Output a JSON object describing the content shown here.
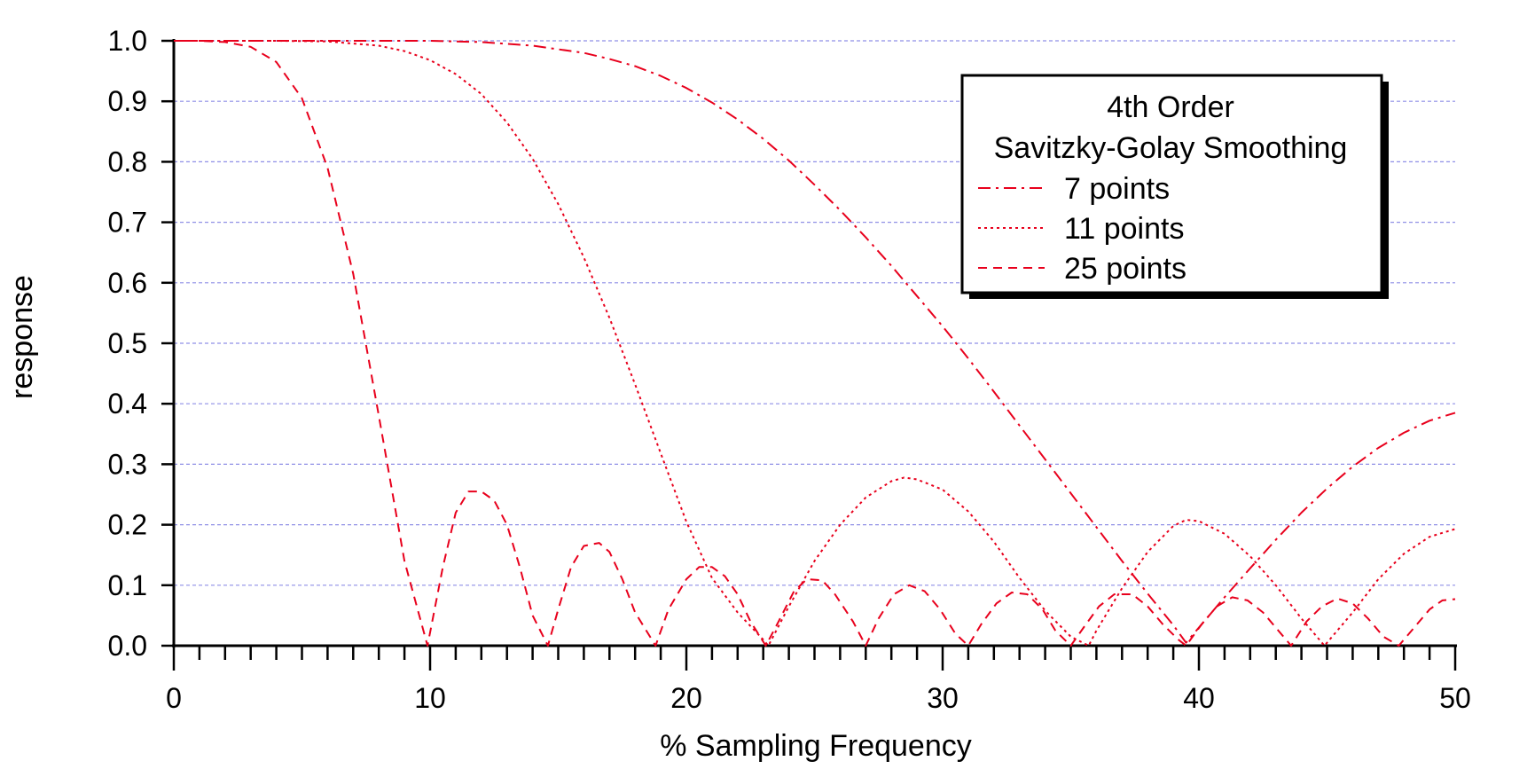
{
  "chart_data": {
    "type": "line",
    "title": "",
    "xlabel": "% Sampling Frequency",
    "ylabel": "response",
    "xlim": [
      0,
      50
    ],
    "ylim": [
      0,
      1.0
    ],
    "x_ticks": [
      "0",
      "10",
      "20",
      "30",
      "40",
      "50"
    ],
    "y_ticks": [
      "0.0",
      "0.1",
      "0.2",
      "0.3",
      "0.4",
      "0.5",
      "0.6",
      "0.7",
      "0.8",
      "0.9",
      "1.0"
    ],
    "grid": "horizontal dashed",
    "legend": {
      "placement": "top-right",
      "title_line1": "4th Order",
      "title_line2": "Savitzky-Golay Smoothing"
    },
    "series": [
      {
        "name": "7 points",
        "style": "dash-dot",
        "color": "#e8001c",
        "x": [
          0,
          2,
          4,
          6,
          8,
          10,
          12,
          14,
          16,
          17,
          18,
          19,
          20,
          21,
          22,
          23,
          24,
          25,
          26,
          27,
          28,
          29,
          30,
          31,
          32,
          33,
          34,
          35,
          36,
          37,
          38,
          39,
          39.5,
          40,
          41,
          42,
          43,
          44,
          45,
          46,
          47,
          48,
          49,
          50
        ],
        "y": [
          1.0,
          1.0,
          1.0,
          1.0,
          1.0,
          1.0,
          0.998,
          0.992,
          0.98,
          0.97,
          0.958,
          0.942,
          0.922,
          0.898,
          0.87,
          0.838,
          0.802,
          0.762,
          0.72,
          0.675,
          0.628,
          0.578,
          0.528,
          0.475,
          0.42,
          0.364,
          0.308,
          0.252,
          0.196,
          0.14,
          0.086,
          0.034,
          0.005,
          0.03,
          0.08,
          0.128,
          0.175,
          0.22,
          0.26,
          0.296,
          0.327,
          0.352,
          0.372,
          0.385
        ]
      },
      {
        "name": "11 points",
        "style": "dotted",
        "color": "#e8001c",
        "x": [
          0,
          2,
          4,
          6,
          8,
          9,
          10,
          11,
          12,
          13,
          14,
          15,
          16,
          17,
          18,
          19,
          20,
          21,
          22,
          23,
          23.2,
          24,
          25,
          26,
          27,
          28,
          28.5,
          29,
          30,
          31,
          32,
          33,
          34,
          35,
          35.7,
          36,
          37,
          38,
          39,
          39.5,
          40,
          41,
          42,
          43,
          44,
          44.9,
          46,
          47,
          48,
          49,
          50
        ],
        "y": [
          1.0,
          1.0,
          1.0,
          0.999,
          0.992,
          0.983,
          0.968,
          0.945,
          0.912,
          0.865,
          0.805,
          0.73,
          0.642,
          0.542,
          0.432,
          0.318,
          0.205,
          0.112,
          0.055,
          0.01,
          0.0,
          0.065,
          0.14,
          0.2,
          0.245,
          0.272,
          0.278,
          0.275,
          0.258,
          0.222,
          0.172,
          0.112,
          0.058,
          0.015,
          0.0,
          0.025,
          0.095,
          0.155,
          0.198,
          0.208,
          0.206,
          0.185,
          0.148,
          0.1,
          0.045,
          0.0,
          0.055,
          0.11,
          0.152,
          0.18,
          0.193
        ]
      },
      {
        "name": "25 points",
        "style": "dashed",
        "color": "#e8001c",
        "x": [
          0,
          1,
          2,
          3,
          4,
          5,
          6,
          7,
          8,
          9,
          9.9,
          10.5,
          11,
          11.5,
          12,
          12.5,
          13,
          13.5,
          14,
          14.6,
          15,
          15.5,
          16,
          16.6,
          17,
          17.5,
          18,
          18.8,
          19.3,
          20,
          20.5,
          21,
          21.5,
          22,
          22.5,
          23.1,
          23.6,
          24.2,
          24.7,
          25.3,
          25.8,
          26.5,
          27,
          27.5,
          28.1,
          28.7,
          29.3,
          29.9,
          30.5,
          31,
          31.5,
          32.1,
          32.7,
          33.3,
          33.9,
          34.4,
          35,
          35.5,
          36.1,
          36.7,
          37.4,
          38,
          38.6,
          39.2,
          39.5,
          40.1,
          40.7,
          41.3,
          41.9,
          42.5,
          43.1,
          43.6,
          44.2,
          44.8,
          45.4,
          46,
          46.6,
          47.2,
          47.8,
          48.4,
          49,
          49.5,
          50
        ],
        "y": [
          1.0,
          1.0,
          0.998,
          0.99,
          0.965,
          0.905,
          0.79,
          0.615,
          0.38,
          0.14,
          0.0,
          0.13,
          0.22,
          0.255,
          0.255,
          0.24,
          0.2,
          0.13,
          0.05,
          0.0,
          0.06,
          0.13,
          0.165,
          0.17,
          0.155,
          0.11,
          0.055,
          0.0,
          0.06,
          0.11,
          0.13,
          0.13,
          0.115,
          0.085,
          0.04,
          0.0,
          0.04,
          0.09,
          0.11,
          0.108,
          0.085,
          0.04,
          0.0,
          0.045,
          0.085,
          0.1,
          0.09,
          0.06,
          0.02,
          0.0,
          0.035,
          0.07,
          0.088,
          0.085,
          0.06,
          0.025,
          0.0,
          0.03,
          0.065,
          0.085,
          0.085,
          0.065,
          0.035,
          0.01,
          0.0,
          0.035,
          0.065,
          0.08,
          0.075,
          0.055,
          0.025,
          0.0,
          0.04,
          0.065,
          0.078,
          0.07,
          0.045,
          0.015,
          0.0,
          0.03,
          0.06,
          0.075,
          0.077
        ]
      }
    ]
  }
}
